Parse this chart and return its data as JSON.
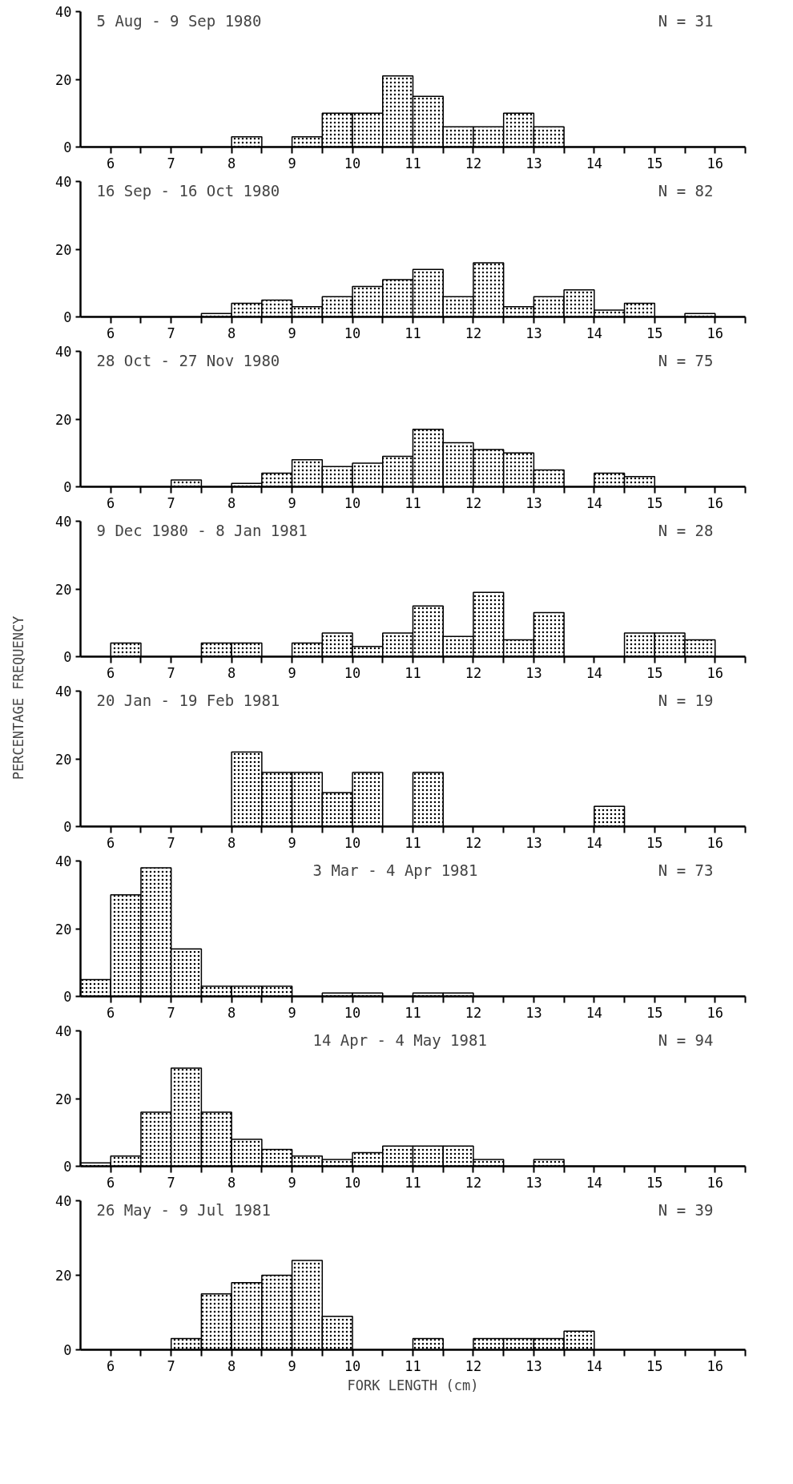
{
  "chart_data": [
    {
      "type": "histogram",
      "title": "5 Aug - 9 Sep 1980",
      "annotations": [
        "N = 31"
      ],
      "bins": [
        5.5,
        6,
        6.5,
        7,
        7.5,
        8,
        8.5,
        9,
        9.5,
        10,
        10.5,
        11,
        11.5,
        12,
        12.5,
        13,
        13.5,
        14,
        14.5,
        15,
        15.5,
        16,
        16.5
      ],
      "values": [
        0,
        0,
        0,
        0,
        0,
        3,
        0,
        3,
        10,
        10,
        21,
        15,
        6,
        6,
        10,
        6,
        0,
        0,
        0,
        0,
        0,
        0
      ],
      "xlim": [
        5.5,
        16.5
      ],
      "xticks": [
        6,
        {
          "value": 6.5,
          "label": null
        },
        7,
        {
          "value": 7.5,
          "label": null
        },
        8,
        {
          "value": 8.5,
          "label": null
        },
        9,
        {
          "value": 9.5,
          "label": null
        },
        10,
        {
          "value": 10.5,
          "label": null
        },
        11,
        {
          "value": 11.5,
          "label": null
        },
        12,
        {
          "value": 12.5,
          "label": null
        },
        13,
        {
          "value": 13.5,
          "label": null
        },
        14,
        {
          "value": 14.5,
          "label": null
        },
        15,
        {
          "value": 15.5,
          "label": null
        },
        16,
        {
          "value": 16.5,
          "label": null
        }
      ],
      "ylim": [
        0,
        40
      ],
      "yticks": [
        0,
        20,
        40
      ]
    },
    {
      "type": "histogram",
      "title": "16 Sep - 16 Oct 1980",
      "annotations": [
        "N = 82"
      ],
      "bins": [
        5.5,
        6,
        6.5,
        7,
        7.5,
        8,
        8.5,
        9,
        9.5,
        10,
        10.5,
        11,
        11.5,
        12,
        12.5,
        13,
        13.5,
        14,
        14.5,
        15,
        15.5,
        16,
        16.5
      ],
      "values": [
        0,
        0,
        0,
        0,
        1,
        4,
        5,
        3,
        6,
        9,
        11,
        14,
        6,
        16,
        3,
        6,
        8,
        2,
        4,
        0,
        1,
        0
      ],
      "xlim": [
        5.5,
        16.5
      ],
      "xticks": [
        6,
        {
          "value": 6.5,
          "label": null
        },
        7,
        {
          "value": 7.5,
          "label": null
        },
        8,
        {
          "value": 8.5,
          "label": null
        },
        9,
        {
          "value": 9.5,
          "label": null
        },
        10,
        {
          "value": 10.5,
          "label": null
        },
        11,
        {
          "value": 11.5,
          "label": null
        },
        12,
        {
          "value": 12.5,
          "label": null
        },
        13,
        {
          "value": 13.5,
          "label": null
        },
        14,
        {
          "value": 14.5,
          "label": null
        },
        15,
        {
          "value": 15.5,
          "label": null
        },
        16,
        {
          "value": 16.5,
          "label": null
        }
      ],
      "ylim": [
        0,
        40
      ],
      "yticks": [
        0,
        20,
        40
      ]
    },
    {
      "type": "histogram",
      "title": "28 Oct - 27 Nov 1980",
      "annotations": [
        "N = 75"
      ],
      "bins": [
        5.5,
        6,
        6.5,
        7,
        7.5,
        8,
        8.5,
        9,
        9.5,
        10,
        10.5,
        11,
        11.5,
        12,
        12.5,
        13,
        13.5,
        14,
        14.5,
        15,
        15.5,
        16,
        16.5
      ],
      "values": [
        0,
        0,
        0,
        2,
        0,
        1,
        4,
        8,
        6,
        7,
        9,
        17,
        13,
        11,
        10,
        5,
        0,
        4,
        3,
        0,
        0,
        0
      ],
      "xlim": [
        5.5,
        16.5
      ],
      "xticks": [
        6,
        {
          "value": 6.5,
          "label": null
        },
        7,
        {
          "value": 7.5,
          "label": null
        },
        8,
        {
          "value": 8.5,
          "label": null
        },
        9,
        {
          "value": 9.5,
          "label": null
        },
        10,
        {
          "value": 10.5,
          "label": null
        },
        11,
        {
          "value": 11.5,
          "label": null
        },
        12,
        {
          "value": 12.5,
          "label": null
        },
        13,
        {
          "value": 13.5,
          "label": null
        },
        14,
        {
          "value": 14.5,
          "label": null
        },
        15,
        {
          "value": 15.5,
          "label": null
        },
        16,
        {
          "value": 16.5,
          "label": null
        }
      ],
      "ylim": [
        0,
        40
      ],
      "yticks": [
        0,
        20,
        40
      ]
    },
    {
      "type": "histogram",
      "title": "9 Dec 1980 - 8 Jan 1981",
      "annotations": [
        "N = 28"
      ],
      "bins": [
        5.5,
        6,
        6.5,
        7,
        7.5,
        8,
        8.5,
        9,
        9.5,
        10,
        10.5,
        11,
        11.5,
        12,
        12.5,
        13,
        13.5,
        14,
        14.5,
        15,
        15.5,
        16,
        16.5
      ],
      "values": [
        0,
        4,
        0,
        0,
        4,
        4,
        0,
        4,
        7,
        3,
        7,
        15,
        6,
        19,
        5,
        13,
        0,
        0,
        7,
        7,
        5,
        0
      ],
      "xlim": [
        5.5,
        16.5
      ],
      "xticks": [
        6,
        {
          "value": 6.5,
          "label": null
        },
        7,
        {
          "value": 7.5,
          "label": null
        },
        8,
        {
          "value": 8.5,
          "label": null
        },
        9,
        {
          "value": 9.5,
          "label": null
        },
        10,
        {
          "value": 10.5,
          "label": null
        },
        11,
        {
          "value": 11.5,
          "label": null
        },
        12,
        {
          "value": 12.5,
          "label": null
        },
        13,
        {
          "value": 13.5,
          "label": null
        },
        14,
        {
          "value": 14.5,
          "label": null
        },
        15,
        {
          "value": 15.5,
          "label": null
        },
        16,
        {
          "value": 16.5,
          "label": null
        }
      ],
      "ylim": [
        0,
        40
      ],
      "yticks": [
        0,
        20,
        40
      ]
    },
    {
      "type": "histogram",
      "title": "20 Jan - 19 Feb 1981",
      "annotations": [
        "N = 19"
      ],
      "ylabel": "PERCENTAGE FREQUENCY",
      "bins": [
        5.5,
        6,
        6.5,
        7,
        7.5,
        8,
        8.5,
        9,
        9.5,
        10,
        10.5,
        11,
        11.5,
        12,
        12.5,
        13,
        13.5,
        14,
        14.5,
        15,
        15.5,
        16,
        16.5
      ],
      "values": [
        0,
        0,
        0,
        0,
        0,
        22,
        16,
        16,
        10,
        16,
        0,
        16,
        0,
        0,
        0,
        0,
        0,
        6,
        0,
        0,
        0,
        0
      ],
      "xlim": [
        5.5,
        16.5
      ],
      "xticks": [
        6,
        {
          "value": 6.5,
          "label": null
        },
        7,
        {
          "value": 7.5,
          "label": null
        },
        8,
        {
          "value": 8.5,
          "label": null
        },
        9,
        {
          "value": 9.5,
          "label": null
        },
        10,
        {
          "value": 10.5,
          "label": null
        },
        11,
        {
          "value": 11.5,
          "label": null
        },
        12,
        {
          "value": 12.5,
          "label": null
        },
        13,
        {
          "value": 13.5,
          "label": null
        },
        14,
        {
          "value": 14.5,
          "label": null
        },
        15,
        {
          "value": 15.5,
          "label": null
        },
        16,
        {
          "value": 16.5,
          "label": null
        }
      ],
      "ylim": [
        0,
        40
      ],
      "yticks": [
        0,
        20,
        40
      ]
    },
    {
      "type": "histogram",
      "title": "3 Mar - 4 Apr 1981",
      "annotations": [
        "N = 73"
      ],
      "bins": [
        5.5,
        6,
        6.5,
        7,
        7.5,
        8,
        8.5,
        9,
        9.5,
        10,
        10.5,
        11,
        11.5,
        12,
        12.5,
        13,
        13.5,
        14,
        14.5,
        15,
        15.5,
        16,
        16.5
      ],
      "values": [
        5,
        30,
        38,
        14,
        3,
        3,
        3,
        0,
        1,
        1,
        0,
        1,
        1,
        0,
        0,
        0,
        0,
        0,
        0,
        0,
        0,
        0
      ],
      "xlim": [
        5.5,
        16.5
      ],
      "xticks": [
        6,
        {
          "value": 6.5,
          "label": null
        },
        7,
        {
          "value": 7.5,
          "label": null
        },
        8,
        {
          "value": 8.5,
          "label": null
        },
        9,
        {
          "value": 9.5,
          "label": null
        },
        10,
        {
          "value": 10.5,
          "label": null
        },
        11,
        {
          "value": 11.5,
          "label": null
        },
        12,
        {
          "value": 12.5,
          "label": null
        },
        13,
        {
          "value": 13.5,
          "label": null
        },
        14,
        {
          "value": 14.5,
          "label": null
        },
        15,
        {
          "value": 15.5,
          "label": null
        },
        16,
        {
          "value": 16.5,
          "label": null
        }
      ],
      "ylim": [
        0,
        40
      ],
      "yticks": [
        0,
        20,
        40
      ]
    },
    {
      "type": "histogram",
      "title": "14 Apr - 4 May 1981",
      "annotations": [
        "N = 94"
      ],
      "bins": [
        5.5,
        6,
        6.5,
        7,
        7.5,
        8,
        8.5,
        9,
        9.5,
        10,
        10.5,
        11,
        11.5,
        12,
        12.5,
        13,
        13.5,
        14,
        14.5,
        15,
        15.5,
        16,
        16.5
      ],
      "values": [
        1,
        3,
        16,
        29,
        16,
        8,
        5,
        3,
        2,
        4,
        6,
        6,
        6,
        2,
        0,
        2,
        0,
        0,
        0,
        0,
        0,
        0
      ],
      "xlim": [
        5.5,
        16.5
      ],
      "xticks": [
        6,
        {
          "value": 6.5,
          "label": null
        },
        7,
        {
          "value": 7.5,
          "label": null
        },
        8,
        {
          "value": 8.5,
          "label": null
        },
        9,
        {
          "value": 9.5,
          "label": null
        },
        10,
        {
          "value": 10.5,
          "label": null
        },
        11,
        {
          "value": 11.5,
          "label": null
        },
        12,
        {
          "value": 12.5,
          "label": null
        },
        13,
        {
          "value": 13.5,
          "label": null
        },
        14,
        {
          "value": 14.5,
          "label": null
        },
        15,
        {
          "value": 15.5,
          "label": null
        },
        16,
        {
          "value": 16.5,
          "label": null
        }
      ],
      "ylim": [
        0,
        40
      ],
      "yticks": [
        0,
        20,
        40
      ]
    },
    {
      "type": "histogram",
      "title": "26 May - 9 Jul 1981",
      "annotations": [
        "N = 39"
      ],
      "xlabel": "FORK LENGTH (cm)",
      "bins": [
        5.5,
        6,
        6.5,
        7,
        7.5,
        8,
        8.5,
        9,
        9.5,
        10,
        10.5,
        11,
        11.5,
        12,
        12.5,
        13,
        13.5,
        14,
        14.5,
        15,
        15.5,
        16,
        16.5
      ],
      "values": [
        0,
        0,
        0,
        3,
        15,
        18,
        20,
        24,
        9,
        0,
        0,
        3,
        0,
        3,
        3,
        3,
        5,
        0,
        0,
        0,
        0,
        0
      ],
      "xlim": [
        5.5,
        16.5
      ],
      "xticks": [
        6,
        {
          "value": 6.5,
          "label": null
        },
        7,
        {
          "value": 7.5,
          "label": null
        },
        8,
        {
          "value": 8.5,
          "label": null
        },
        9,
        {
          "value": 9.5,
          "label": null
        },
        10,
        {
          "value": 10.5,
          "label": null
        },
        11,
        {
          "value": 11.5,
          "label": null
        },
        12,
        {
          "value": 12.5,
          "label": null
        },
        13,
        {
          "value": 13.5,
          "label": null
        },
        14,
        {
          "value": 14.5,
          "label": null
        },
        15,
        {
          "value": 15.5,
          "label": null
        },
        16,
        {
          "value": 16.5,
          "label": null
        }
      ],
      "ylim": [
        0,
        40
      ],
      "yticks": [
        0,
        20,
        40
      ]
    }
  ]
}
